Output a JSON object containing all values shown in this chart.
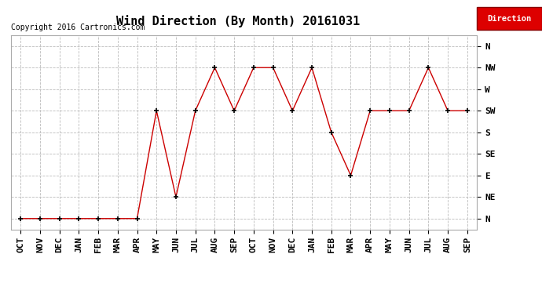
{
  "title": "Wind Direction (By Month) 20161031",
  "copyright": "Copyright 2016 Cartronics.com",
  "legend_label": "Direction",
  "legend_color": "#dd0000",
  "x_labels": [
    "OCT",
    "NOV",
    "DEC",
    "JAN",
    "FEB",
    "MAR",
    "APR",
    "MAY",
    "JUN",
    "JUL",
    "AUG",
    "SEP",
    "OCT",
    "NOV",
    "DEC",
    "JAN",
    "FEB",
    "MAR",
    "APR",
    "MAY",
    "JUN",
    "JUL",
    "AUG",
    "SEP"
  ],
  "y_labels": [
    "N",
    "NE",
    "E",
    "SE",
    "S",
    "SW",
    "W",
    "NW",
    "N"
  ],
  "y_values": [
    0,
    1,
    2,
    3,
    4,
    5,
    6,
    7,
    8
  ],
  "data_y": [
    0,
    0,
    0,
    0,
    0,
    0,
    0,
    5,
    1,
    5,
    7,
    5,
    7,
    7,
    5,
    7,
    4,
    2,
    5,
    5,
    5,
    7,
    5,
    5
  ],
  "line_color": "#cc0000",
  "marker": "+",
  "marker_color": "#000000",
  "bg_color": "#ffffff",
  "grid_color": "#bbbbbb",
  "title_fontsize": 11,
  "label_fontsize": 8,
  "copyright_fontsize": 7,
  "tick_fontsize": 8
}
